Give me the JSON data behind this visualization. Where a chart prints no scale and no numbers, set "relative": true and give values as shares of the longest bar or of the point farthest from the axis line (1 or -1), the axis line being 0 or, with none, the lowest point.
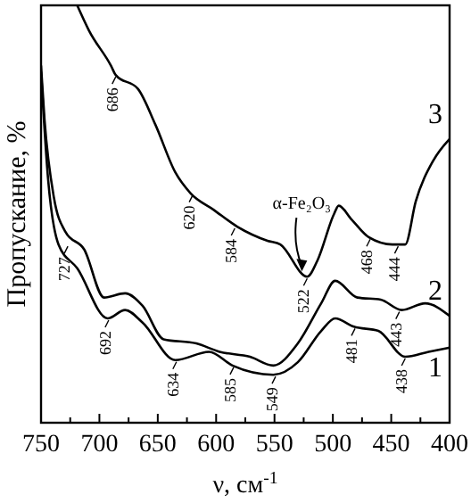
{
  "chart_data": {
    "type": "line",
    "relative": true,
    "xlabel": "ν, см$^{-1}$",
    "ylabel": "Пропускание, %",
    "xlim": [
      750,
      400
    ],
    "xticks": [
      750,
      {
        "value": 725,
        "label": null
      },
      700,
      {
        "value": 675,
        "label": null
      },
      650,
      {
        "value": 625,
        "label": null
      },
      600,
      {
        "value": 575,
        "label": null
      },
      550,
      {
        "value": 525,
        "label": null
      },
      500,
      {
        "value": 475,
        "label": null
      },
      450,
      {
        "value": 425,
        "label": null
      },
      400
    ],
    "series": [
      {
        "name": "3",
        "color": "#000000",
        "x": [
          719,
          709,
          690,
          686,
          667,
          652,
          635,
          622,
          602,
          582,
          556,
          545,
          522,
          513,
          499,
          495,
          484,
          469,
          449,
          438,
          429,
          414,
          400
        ],
        "values": [
          1.0,
          0.94,
          0.855,
          0.833,
          0.8,
          0.714,
          0.6,
          0.55,
          0.51,
          0.47,
          0.436,
          0.427,
          0.35,
          0.39,
          0.5,
          0.52,
          0.487,
          0.444,
          0.427,
          0.427,
          0.53,
          0.628,
          0.68
        ]
      },
      {
        "name": "2",
        "color": "#000000",
        "x": [
          750,
          747,
          739,
          729,
          713,
          696,
          678,
          663,
          645,
          617,
          597,
          571,
          551,
          530,
          510,
          498,
          479,
          459,
          441,
          421,
          400
        ],
        "values": [
          0.855,
          0.726,
          0.54,
          0.457,
          0.415,
          0.3,
          0.31,
          0.28,
          0.2,
          0.19,
          0.17,
          0.158,
          0.137,
          0.19,
          0.286,
          0.34,
          0.3,
          0.295,
          0.27,
          0.286,
          0.256
        ]
      },
      {
        "name": "1",
        "color": "#000000",
        "x": [
          750,
          744,
          735,
          719,
          693,
          678,
          663,
          635,
          606,
          586,
          551,
          530,
          510,
          498,
          482,
          461,
          438,
          418,
          400
        ],
        "values": [
          0.84,
          0.585,
          0.427,
          0.37,
          0.25,
          0.27,
          0.24,
          0.15,
          0.17,
          0.137,
          0.115,
          0.145,
          0.22,
          0.25,
          0.23,
          0.22,
          0.158,
          0.17,
          0.18
        ]
      }
    ],
    "annotations": [
      {
        "text": "686",
        "x": 686,
        "y": 0.833
      },
      {
        "text": "620",
        "x": 620,
        "y": 0.55
      },
      {
        "text": "584",
        "x": 584,
        "y": 0.47
      },
      {
        "text": "522",
        "x": 522,
        "y": 0.35
      },
      {
        "text": "468",
        "x": 468,
        "y": 0.444
      },
      {
        "text": "444",
        "x": 444,
        "y": 0.427
      },
      {
        "text": "727",
        "x": 727,
        "y": 0.427
      },
      {
        "text": "692",
        "x": 692,
        "y": 0.25
      },
      {
        "text": "634",
        "x": 634,
        "y": 0.15
      },
      {
        "text": "585",
        "x": 585,
        "y": 0.137
      },
      {
        "text": "549",
        "x": 549,
        "y": 0.115
      },
      {
        "text": "481",
        "x": 481,
        "y": 0.23
      },
      {
        "text": "443",
        "x": 443,
        "y": 0.27
      },
      {
        "text": "438",
        "x": 438,
        "y": 0.158
      },
      "α-Fe₂O₃"
    ],
    "grid": false,
    "line_style": "solid"
  }
}
